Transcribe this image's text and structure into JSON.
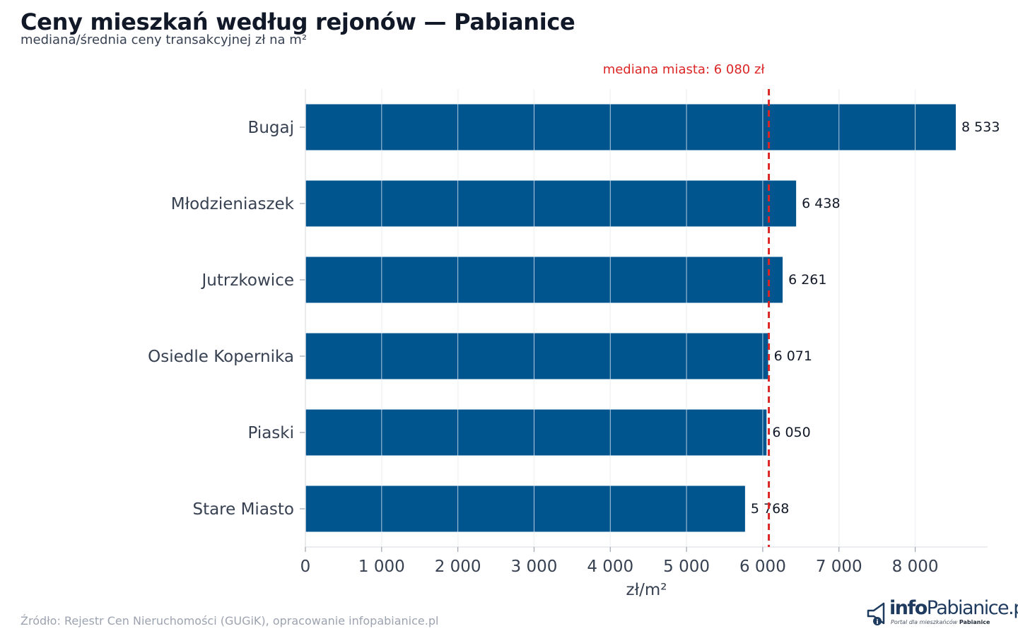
{
  "header": {
    "title": "Ceny mieszkań według rejonów — Pabianice",
    "subtitle": "mediana/średnia ceny transakcyjnej zł na m²"
  },
  "footer": {
    "source": "Źródło: Rejestr Cen Nieruchomości (GUGiK), opracowanie infopabianice.pl"
  },
  "logo": {
    "prefix": "info",
    "name": "Pabianice.pl",
    "tagline": "Portal dla mieszkańców",
    "tagline_bold": "Pabianice",
    "icon": "megaphone-icon"
  },
  "chart_data": {
    "type": "bar",
    "orientation": "horizontal",
    "categories": [
      "Bugaj",
      "Młodzieniaszek",
      "Jutrzkowice",
      "Osiedle Kopernika",
      "Piaski",
      "Stare Miasto"
    ],
    "values": [
      8533,
      6438,
      6261,
      6071,
      6050,
      5768
    ],
    "data_labels": [
      "8 533",
      "6 438",
      "6 261",
      "6 071",
      "6 050",
      "5 768"
    ],
    "xlabel": "zł/m²",
    "xlim": [
      0,
      8950
    ],
    "xticks": [
      0,
      1000,
      2000,
      3000,
      4000,
      5000,
      6000,
      7000,
      8000
    ],
    "xtick_labels": [
      "0",
      "1 000",
      "2 000",
      "3 000",
      "4 000",
      "5 000",
      "6 000",
      "7 000",
      "8 000"
    ],
    "grid": "vertical",
    "reference_line": {
      "value": 6080,
      "label": "mediana miasta: 6 080 zł",
      "color": "#dc2626",
      "style": "dashed"
    },
    "bar_color": "#00558f",
    "grid_color": "#e5e7eb"
  }
}
